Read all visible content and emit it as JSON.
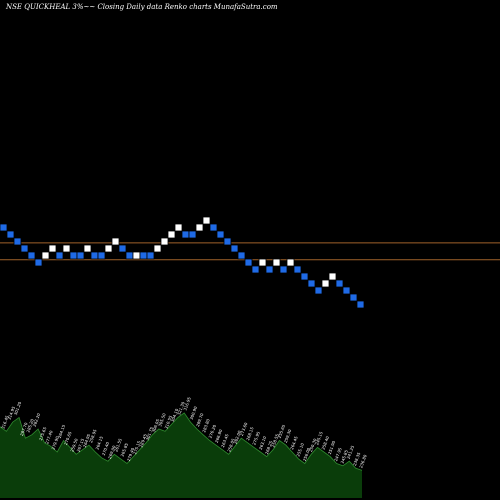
{
  "header": {
    "title": "NSE QUICKHEAL 3%~~ Closing Daily data  Renko  charts MunafaSutra.com"
  },
  "colors": {
    "background": "#000000",
    "up_brick": "#ffffff",
    "down_brick": "#1f6ae6",
    "brick_border": "#000000",
    "level_line": "#a0622a",
    "volume_fill": "#0a3d0a",
    "volume_line": "#2e8b2e"
  },
  "chart_data": {
    "type": "renko",
    "box_size_pct": 3,
    "bricks": [
      {
        "d": "down"
      },
      {
        "d": "down"
      },
      {
        "d": "down"
      },
      {
        "d": "down"
      },
      {
        "d": "down"
      },
      {
        "d": "down"
      },
      {
        "d": "up"
      },
      {
        "d": "up"
      },
      {
        "d": "down"
      },
      {
        "d": "up"
      },
      {
        "d": "down"
      },
      {
        "d": "down"
      },
      {
        "d": "up"
      },
      {
        "d": "down"
      },
      {
        "d": "down"
      },
      {
        "d": "up"
      },
      {
        "d": "up"
      },
      {
        "d": "down"
      },
      {
        "d": "down"
      },
      {
        "d": "up"
      },
      {
        "d": "down"
      },
      {
        "d": "down"
      },
      {
        "d": "up"
      },
      {
        "d": "up"
      },
      {
        "d": "up"
      },
      {
        "d": "up"
      },
      {
        "d": "down"
      },
      {
        "d": "down"
      },
      {
        "d": "up"
      },
      {
        "d": "up"
      },
      {
        "d": "down"
      },
      {
        "d": "down"
      },
      {
        "d": "down"
      },
      {
        "d": "down"
      },
      {
        "d": "down"
      },
      {
        "d": "down"
      },
      {
        "d": "down"
      },
      {
        "d": "up"
      },
      {
        "d": "down"
      },
      {
        "d": "up"
      },
      {
        "d": "down"
      },
      {
        "d": "up"
      },
      {
        "d": "down"
      },
      {
        "d": "down"
      },
      {
        "d": "down"
      },
      {
        "d": "down"
      },
      {
        "d": "up"
      },
      {
        "d": "up"
      },
      {
        "d": "down"
      },
      {
        "d": "down"
      },
      {
        "d": "down"
      },
      {
        "d": "down"
      }
    ],
    "brick_levels": [
      14,
      13,
      12,
      11,
      10,
      9,
      10,
      11,
      10,
      11,
      10,
      10,
      11,
      10,
      10,
      11,
      12,
      11,
      10,
      10,
      10,
      10,
      11,
      12,
      13,
      14,
      13,
      13,
      14,
      15,
      14,
      13,
      12,
      11,
      10,
      9,
      8,
      9,
      8,
      9,
      8,
      9,
      8,
      7,
      6,
      5,
      6,
      7,
      6,
      5,
      4,
      3
    ],
    "horizontal_lines": [
      {
        "level": 11.8
      },
      {
        "level": 9.4
      }
    ],
    "volume_labels": [
      "316.45",
      "314.95",
      "301.20",
      "287.70",
      "285.20",
      "282.20",
      "275.65",
      "277.40",
      "279.90",
      "264.15",
      "270.65",
      "259.50",
      "267.15",
      "264.95",
      "258.95",
      "264.15",
      "270.40",
      "269.00",
      "261.55",
      "265.85",
      "279.40",
      "275.15",
      "289.45",
      "301.75",
      "306.05",
      "305.50",
      "310.55",
      "304.10",
      "321.30",
      "316.95",
      "300.90",
      "289.70",
      "283.80",
      "276.20",
      "266.80",
      "263.45",
      "258.05",
      "262.00",
      "273.60",
      "268.15",
      "275.95",
      "263.10",
      "268.25",
      "258.55",
      "255.65",
      "259.30",
      "264.45",
      "255.10",
      "256.00",
      "250.30",
      "245.15",
      "258.40",
      "251.90",
      "247.95",
      "245.85",
      "241.25",
      "238.35",
      "236.80"
    ],
    "volume_profile": [
      62,
      58,
      66,
      70,
      52,
      55,
      60,
      48,
      45,
      40,
      50,
      44,
      38,
      42,
      46,
      40,
      35,
      32,
      38,
      34,
      30,
      36,
      42,
      48,
      55,
      60,
      58,
      64,
      70,
      74,
      66,
      60,
      55,
      50,
      46,
      42,
      38,
      45,
      52,
      48,
      44,
      40,
      36,
      42,
      50,
      46,
      40,
      34,
      30,
      38,
      44,
      40,
      36,
      30,
      28,
      32,
      26,
      24
    ]
  }
}
